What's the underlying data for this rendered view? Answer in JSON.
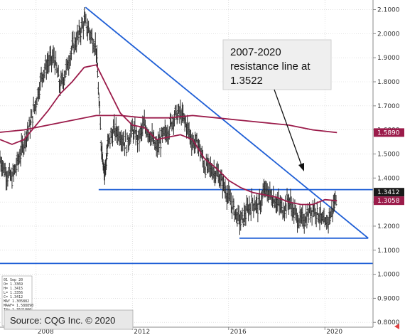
{
  "chart_data": {
    "type": "line",
    "instrument_note": "",
    "ylim": [
      0.78,
      2.14
    ],
    "y_ticks": [
      "2.1000",
      "2.0000",
      "1.9000",
      "1.8000",
      "1.7000",
      "1.6000",
      "1.5000",
      "1.4000",
      "1.3000",
      "1.2000",
      "1.1000",
      "1.0000",
      "0.9000",
      "0.8000"
    ],
    "y_tick_values": [
      2.1,
      2.0,
      1.9,
      1.8,
      1.7,
      1.6,
      1.5,
      1.4,
      1.3,
      1.2,
      1.1,
      1.0,
      0.9,
      0.8
    ],
    "x_range": [
      2006.5,
      2022.0
    ],
    "x_ticks": [
      "2008",
      "2012",
      "2016",
      "2020"
    ],
    "x_tick_values": [
      2008,
      2012,
      2016,
      2020
    ],
    "series": [
      {
        "color": "#2a2a2a",
        "style": "ohlc-bars",
        "points": [
          [
            2006.5,
            1.48
          ],
          [
            2006.75,
            1.42
          ],
          [
            2007.0,
            1.4
          ],
          [
            2007.25,
            1.47
          ],
          [
            2007.5,
            1.55
          ],
          [
            2007.75,
            1.62
          ],
          [
            2008.0,
            1.72
          ],
          [
            2008.25,
            1.83
          ],
          [
            2008.5,
            1.88
          ],
          [
            2008.75,
            1.9
          ],
          [
            2009.0,
            1.78
          ],
          [
            2009.25,
            1.85
          ],
          [
            2009.5,
            1.94
          ],
          [
            2009.75,
            1.99
          ],
          [
            2010.0,
            2.05
          ],
          [
            2010.25,
            2.0
          ],
          [
            2010.5,
            1.94
          ],
          [
            2010.7,
            1.55
          ],
          [
            2010.85,
            1.42
          ],
          [
            2011.0,
            1.55
          ],
          [
            2011.25,
            1.6
          ],
          [
            2011.5,
            1.58
          ],
          [
            2011.75,
            1.54
          ],
          [
            2012.0,
            1.6
          ],
          [
            2012.25,
            1.56
          ],
          [
            2012.5,
            1.62
          ],
          [
            2012.75,
            1.58
          ],
          [
            2013.0,
            1.52
          ],
          [
            2013.25,
            1.57
          ],
          [
            2013.5,
            1.6
          ],
          [
            2013.75,
            1.66
          ],
          [
            2014.0,
            1.67
          ],
          [
            2014.25,
            1.62
          ],
          [
            2014.5,
            1.55
          ],
          [
            2014.75,
            1.54
          ],
          [
            2015.0,
            1.45
          ],
          [
            2015.25,
            1.44
          ],
          [
            2015.5,
            1.42
          ],
          [
            2015.75,
            1.38
          ],
          [
            2016.0,
            1.32
          ],
          [
            2016.25,
            1.26
          ],
          [
            2016.5,
            1.22
          ],
          [
            2016.75,
            1.26
          ],
          [
            2017.0,
            1.3
          ],
          [
            2017.25,
            1.28
          ],
          [
            2017.5,
            1.35
          ],
          [
            2017.75,
            1.33
          ],
          [
            2018.0,
            1.3
          ],
          [
            2018.25,
            1.27
          ],
          [
            2018.5,
            1.31
          ],
          [
            2018.75,
            1.25
          ],
          [
            2019.0,
            1.22
          ],
          [
            2019.25,
            1.24
          ],
          [
            2019.5,
            1.28
          ],
          [
            2019.75,
            1.25
          ],
          [
            2020.0,
            1.2
          ],
          [
            2020.25,
            1.25
          ],
          [
            2020.5,
            1.33
          ]
        ]
      },
      {
        "color": "#9b1b4a",
        "style": "line",
        "points": [
          [
            2006.5,
            1.56
          ],
          [
            2007.0,
            1.54
          ],
          [
            2007.5,
            1.56
          ],
          [
            2008.0,
            1.62
          ],
          [
            2008.5,
            1.68
          ],
          [
            2009.0,
            1.75
          ],
          [
            2009.5,
            1.8
          ],
          [
            2010.0,
            1.86
          ],
          [
            2010.5,
            1.87
          ],
          [
            2011.0,
            1.77
          ],
          [
            2011.5,
            1.67
          ],
          [
            2012.0,
            1.62
          ],
          [
            2012.5,
            1.61
          ],
          [
            2013.0,
            1.56
          ],
          [
            2013.5,
            1.57
          ],
          [
            2014.0,
            1.58
          ],
          [
            2014.5,
            1.56
          ],
          [
            2015.0,
            1.48
          ],
          [
            2015.5,
            1.44
          ],
          [
            2016.0,
            1.39
          ],
          [
            2016.5,
            1.36
          ],
          [
            2017.0,
            1.34
          ],
          [
            2017.5,
            1.33
          ],
          [
            2018.0,
            1.32
          ],
          [
            2018.5,
            1.3
          ],
          [
            2019.0,
            1.29
          ],
          [
            2019.5,
            1.29
          ],
          [
            2020.0,
            1.31
          ],
          [
            2020.5,
            1.3058
          ]
        ]
      },
      {
        "color": "#9b1b4a",
        "style": "line",
        "points": [
          [
            2006.5,
            1.59
          ],
          [
            2007.5,
            1.6
          ],
          [
            2008.5,
            1.62
          ],
          [
            2009.5,
            1.64
          ],
          [
            2010.5,
            1.66
          ],
          [
            2011.5,
            1.66
          ],
          [
            2012.5,
            1.65
          ],
          [
            2013.5,
            1.65
          ],
          [
            2014.5,
            1.66
          ],
          [
            2015.5,
            1.65
          ],
          [
            2016.5,
            1.64
          ],
          [
            2017.5,
            1.63
          ],
          [
            2018.5,
            1.62
          ],
          [
            2019.5,
            1.6
          ],
          [
            2020.5,
            1.589
          ]
        ]
      }
    ],
    "trendlines": [
      {
        "kind": "resistance",
        "color": "#1f5fd6",
        "from": [
          2010.05,
          2.11
        ],
        "to": [
          2021.8,
          1.15
        ]
      },
      {
        "kind": "horizontal",
        "color": "#1f5fd6",
        "from": [
          2010.6,
          1.3518
        ],
        "to": [
          2022.0,
          1.3518
        ]
      },
      {
        "kind": "horizontal",
        "color": "#1f5fd6",
        "from": [
          2016.45,
          1.15
        ],
        "to": [
          2021.8,
          1.15
        ]
      },
      {
        "kind": "horizontal",
        "color": "#1f5fd6",
        "from": [
          2006.5,
          1.045
        ],
        "to": [
          2022.0,
          1.045
        ]
      }
    ],
    "price_tags": [
      {
        "text": "1.5890",
        "value": 1.589,
        "bg": "#9b1b4a"
      },
      {
        "text": "1.3412",
        "value": 1.3412,
        "bg": "#1a1a1a"
      },
      {
        "text": "1.3058",
        "value": 1.3058,
        "bg": "#9b1b4a"
      }
    ],
    "annotation": {
      "lines": [
        "2007-2020",
        "resistance line at",
        "1.3522"
      ]
    },
    "stat_box": {
      "lines": [
        "01 Sep 20",
        "O=      1.3369",
        "H=      1.3415",
        "L=      1.3356",
        "C=      1.3412",
        "MAY     1.305882",
        "MAAF=   1.588890",
        "T4=    1.3521800"
      ]
    },
    "source": "Source: CQG Inc. © 2020"
  }
}
